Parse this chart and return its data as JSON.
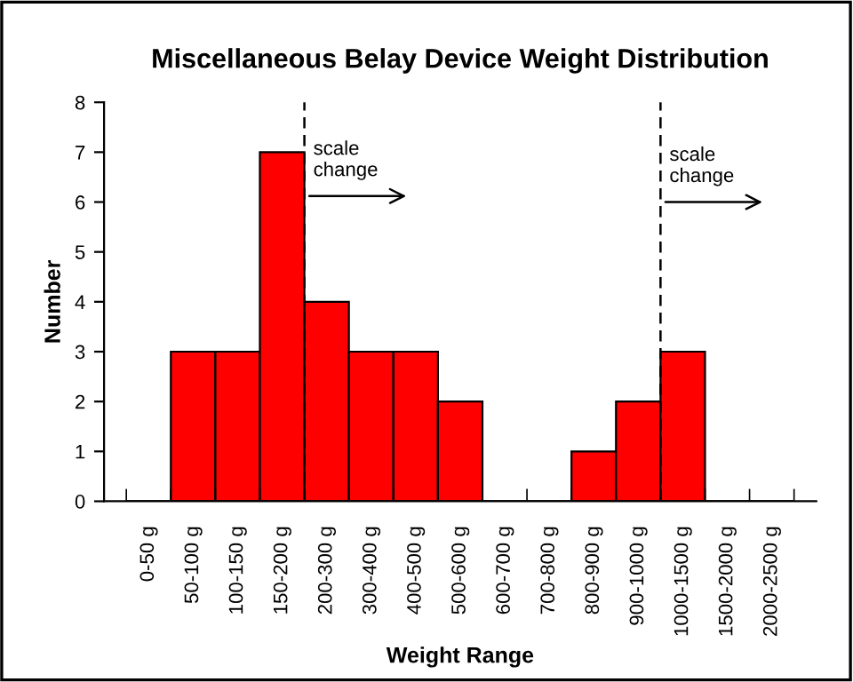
{
  "chart_data": {
    "type": "bar",
    "title": "Miscellaneous Belay Device Weight Distribution",
    "xlabel": "Weight Range",
    "ylabel": "Number",
    "categories": [
      "0-50 g",
      "50-100 g",
      "100-150 g",
      "150-200 g",
      "200-300 g",
      "300-400 g",
      "400-500 g",
      "500-600 g",
      "600-700 g",
      "700-800 g",
      "800-900 g",
      "900-1000 g",
      "1000-1500 g",
      "1500-2000 g",
      "2000-2500 g"
    ],
    "values": [
      0,
      3,
      3,
      7,
      4,
      3,
      3,
      2,
      0,
      0,
      1,
      2,
      3,
      0,
      0
    ],
    "color": "#ff0000",
    "ylim": [
      0,
      8
    ],
    "yticks": [
      0,
      1,
      2,
      3,
      4,
      5,
      6,
      7,
      8
    ],
    "grid": false,
    "legend": false,
    "annotations": [
      "scale\nchange",
      "scale\nchange"
    ]
  }
}
